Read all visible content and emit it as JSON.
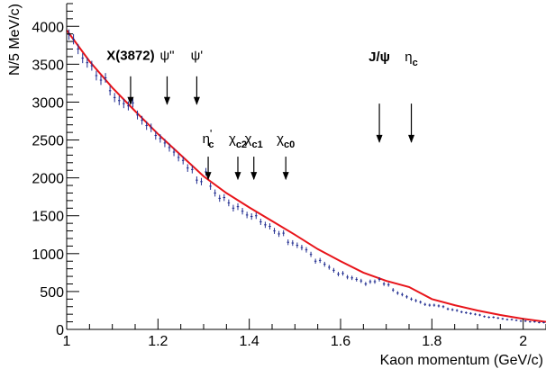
{
  "chart_data": {
    "type": "scatter",
    "title": "",
    "xlabel": "Kaon momentum (GeV/c)",
    "ylabel": "N/5 MeV/c)",
    "xlim": [
      1.0,
      2.05
    ],
    "ylim": [
      0,
      4300
    ],
    "x_ticks": [
      1,
      1.2,
      1.4,
      1.6,
      1.8,
      2
    ],
    "x_tick_labels": [
      "1",
      "1.2",
      "1.4",
      "1.6",
      "1.8",
      "2"
    ],
    "y_ticks": [
      0,
      500,
      1000,
      1500,
      2000,
      2500,
      3000,
      3500,
      4000
    ],
    "y_tick_labels": [
      "0",
      "500",
      "1000",
      "1500",
      "2000",
      "2500",
      "3000",
      "3500",
      "4000"
    ],
    "grid": false,
    "legend": "none",
    "colors": {
      "data": "#1f2b8f",
      "fit": "#e8141a",
      "frame": "#000000"
    },
    "fit": {
      "name": "",
      "x": [
        1.0,
        1.05,
        1.1,
        1.15,
        1.2,
        1.25,
        1.3,
        1.35,
        1.4,
        1.45,
        1.5,
        1.55,
        1.6,
        1.65,
        1.7,
        1.75,
        1.8,
        1.85,
        1.9,
        1.95,
        2.0,
        2.05
      ],
      "y": [
        3950,
        3540,
        3190,
        2880,
        2580,
        2300,
        2020,
        1800,
        1610,
        1430,
        1250,
        1060,
        900,
        750,
        640,
        560,
        400,
        320,
        250,
        190,
        140,
        100
      ]
    },
    "data_points": {
      "x": [
        1.005,
        1.015,
        1.025,
        1.035,
        1.045,
        1.055,
        1.065,
        1.075,
        1.085,
        1.095,
        1.105,
        1.115,
        1.125,
        1.135,
        1.145,
        1.155,
        1.165,
        1.175,
        1.185,
        1.195,
        1.205,
        1.215,
        1.225,
        1.235,
        1.245,
        1.255,
        1.265,
        1.275,
        1.285,
        1.295,
        1.305,
        1.315,
        1.325,
        1.335,
        1.345,
        1.355,
        1.365,
        1.375,
        1.385,
        1.395,
        1.405,
        1.415,
        1.425,
        1.435,
        1.445,
        1.455,
        1.465,
        1.475,
        1.485,
        1.495,
        1.505,
        1.515,
        1.525,
        1.535,
        1.545,
        1.555,
        1.565,
        1.575,
        1.585,
        1.595,
        1.605,
        1.615,
        1.625,
        1.635,
        1.645,
        1.655,
        1.665,
        1.675,
        1.685,
        1.695,
        1.705,
        1.715,
        1.725,
        1.735,
        1.745,
        1.755,
        1.765,
        1.775,
        1.785,
        1.795,
        1.805,
        1.815,
        1.825,
        1.835,
        1.845,
        1.855,
        1.865,
        1.875,
        1.885,
        1.895,
        1.905,
        1.915,
        1.925,
        1.935,
        1.945,
        1.955,
        1.965,
        1.975,
        1.985,
        1.995,
        2.005,
        2.015,
        2.025,
        2.035,
        2.045
      ],
      "y": [
        3890,
        3830,
        3700,
        3580,
        3520,
        3480,
        3350,
        3290,
        3320,
        3150,
        3060,
        3020,
        2980,
        2950,
        2990,
        2830,
        2760,
        2690,
        2660,
        2560,
        2520,
        2460,
        2400,
        2340,
        2270,
        2230,
        2130,
        2110,
        1970,
        1950,
        2080,
        1890,
        1800,
        1730,
        1740,
        1670,
        1600,
        1620,
        1560,
        1510,
        1490,
        1500,
        1420,
        1380,
        1360,
        1300,
        1260,
        1270,
        1150,
        1140,
        1110,
        1080,
        1050,
        990,
        900,
        910,
        860,
        820,
        780,
        730,
        740,
        690,
        680,
        660,
        640,
        600,
        630,
        630,
        660,
        600,
        590,
        520,
        480,
        460,
        430,
        400,
        380,
        360,
        330,
        320,
        320,
        310,
        300,
        270,
        260,
        250,
        230,
        220,
        210,
        200,
        190,
        170,
        160,
        160,
        150,
        140,
        130,
        130,
        120,
        110,
        110,
        100,
        100,
        90,
        90
      ]
    },
    "annotations": [
      {
        "label": "X(3872)",
        "bold": true,
        "x": 1.14,
        "label_y": 3560,
        "arrow_from": 3340,
        "arrow_to": 2960
      },
      {
        "label": "ψ\"",
        "bold": false,
        "x": 1.22,
        "label_y": 3560,
        "arrow_from": 3340,
        "arrow_to": 2960
      },
      {
        "label": "ψ'",
        "bold": false,
        "x": 1.285,
        "label_y": 3560,
        "arrow_from": 3340,
        "arrow_to": 2960
      },
      {
        "label": "J/ψ",
        "bold": true,
        "x": 1.685,
        "label_y": 3540,
        "arrow_from": 2980,
        "arrow_to": 2460
      },
      {
        "label": "η",
        "sub": "c",
        "bold": false,
        "x": 1.755,
        "label_y": 3540,
        "arrow_from": 2980,
        "arrow_to": 2460
      },
      {
        "label": "η",
        "sub": "c",
        "prime": "'",
        "bold": false,
        "x": 1.31,
        "label_y": 2460,
        "arrow_from": 2280,
        "arrow_to": 1970
      },
      {
        "label": "χ",
        "sub": "c2",
        "bold": false,
        "x": 1.375,
        "label_y": 2460,
        "arrow_from": 2280,
        "arrow_to": 1970
      },
      {
        "label": "χ",
        "sub": "c1",
        "bold": false,
        "x": 1.41,
        "label_y": 2460,
        "arrow_from": 2280,
        "arrow_to": 1970
      },
      {
        "label": "χ",
        "sub": "c0",
        "bold": false,
        "x": 1.48,
        "label_y": 2460,
        "arrow_from": 2280,
        "arrow_to": 1970
      }
    ]
  }
}
